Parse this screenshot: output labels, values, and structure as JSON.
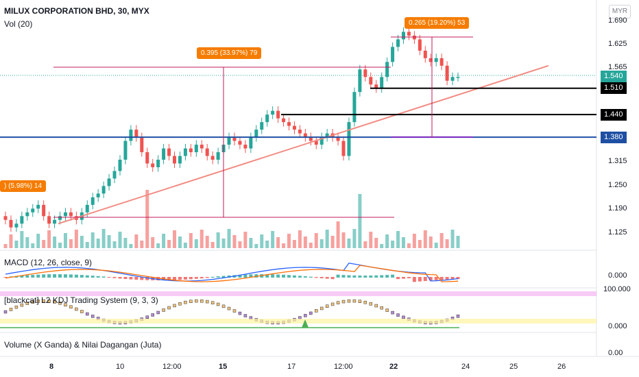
{
  "header": {
    "title": "MILUX CORPORATION BHD, 30, MYX",
    "vol_label": "Vol (20)",
    "currency": "MYR"
  },
  "indicators": {
    "macd_label": "MACD (12, 26, close, 9)",
    "kdj_label": "[blackcat] L2 KDJ Trading System (9, 3, 3)",
    "volx_label": "Volume (X Ganda) & Nilai Dagangan (Juta)"
  },
  "price_axis": [
    "1.690",
    "1.625",
    "1.565",
    "1.315",
    "1.250",
    "1.190",
    "1.125"
  ],
  "price_tags": [
    {
      "label": "1.540",
      "bg": "#26a69a",
      "color": "#ffffff"
    },
    {
      "label": "1.510",
      "bg": "#000000",
      "color": "#ffffff"
    },
    {
      "label": "1.440",
      "bg": "#000000",
      "color": "#ffffff"
    },
    {
      "label": "1.380",
      "bg": "#1e4fa3",
      "color": "#ffffff"
    }
  ],
  "macd_axis": "0.000",
  "kdj_axis": [
    "100.000",
    "0.000"
  ],
  "volx_axis": "0.00",
  "time_axis": [
    {
      "label": "8",
      "bold": true
    },
    {
      "label": "10",
      "bold": false
    },
    {
      "label": "12:00",
      "bold": false
    },
    {
      "label": "15",
      "bold": true
    },
    {
      "label": "17",
      "bold": false
    },
    {
      "label": "12:00",
      "bold": false
    },
    {
      "label": "22",
      "bold": true
    },
    {
      "label": "24",
      "bold": false
    },
    {
      "label": "25",
      "bold": false
    },
    {
      "label": "26",
      "bold": false
    }
  ],
  "measurements": [
    {
      "label": "0.395 (33.97%) 79"
    },
    {
      "label": "0.265 (19.20%) 53"
    },
    {
      "label": ") (5.98%) 14"
    }
  ],
  "colors": {
    "up": "#26a69a",
    "down": "#ef5350",
    "trendline": "#f28b82",
    "macd_line": "#2962ff",
    "signal_line": "#ff6d00",
    "level_blue": "#1e4fa3",
    "bubble": "#f57c00"
  },
  "chart_data": {
    "type": "candlestick",
    "title": "MILUX CORPORATION BHD, 30, MYX",
    "x": [
      "8",
      "10",
      "12:00",
      "15",
      "17",
      "12:00",
      "22",
      "24",
      "25",
      "26"
    ],
    "ylim": [
      1.09,
      1.7
    ],
    "horizontal_levels": [
      1.51,
      1.44,
      1.38
    ],
    "last_price": 1.54,
    "trendline": {
      "from": 1.15,
      "to": 1.57
    },
    "candles_close": [
      1.16,
      1.14,
      1.15,
      1.17,
      1.18,
      1.19,
      1.2,
      1.17,
      1.15,
      1.16,
      1.17,
      1.18,
      1.17,
      1.16,
      1.18,
      1.2,
      1.22,
      1.23,
      1.25,
      1.27,
      1.29,
      1.32,
      1.37,
      1.4,
      1.38,
      1.34,
      1.31,
      1.3,
      1.32,
      1.35,
      1.33,
      1.31,
      1.33,
      1.35,
      1.34,
      1.36,
      1.35,
      1.33,
      1.32,
      1.34,
      1.36,
      1.38,
      1.37,
      1.36,
      1.35,
      1.38,
      1.4,
      1.42,
      1.44,
      1.45,
      1.43,
      1.42,
      1.41,
      1.4,
      1.39,
      1.38,
      1.37,
      1.36,
      1.38,
      1.39,
      1.38,
      1.37,
      1.33,
      1.42,
      1.5,
      1.56,
      1.54,
      1.52,
      1.51,
      1.54,
      1.58,
      1.62,
      1.64,
      1.66,
      1.65,
      1.64,
      1.61,
      1.59,
      1.58,
      1.59,
      1.57,
      1.53,
      1.54,
      1.54
    ]
  }
}
